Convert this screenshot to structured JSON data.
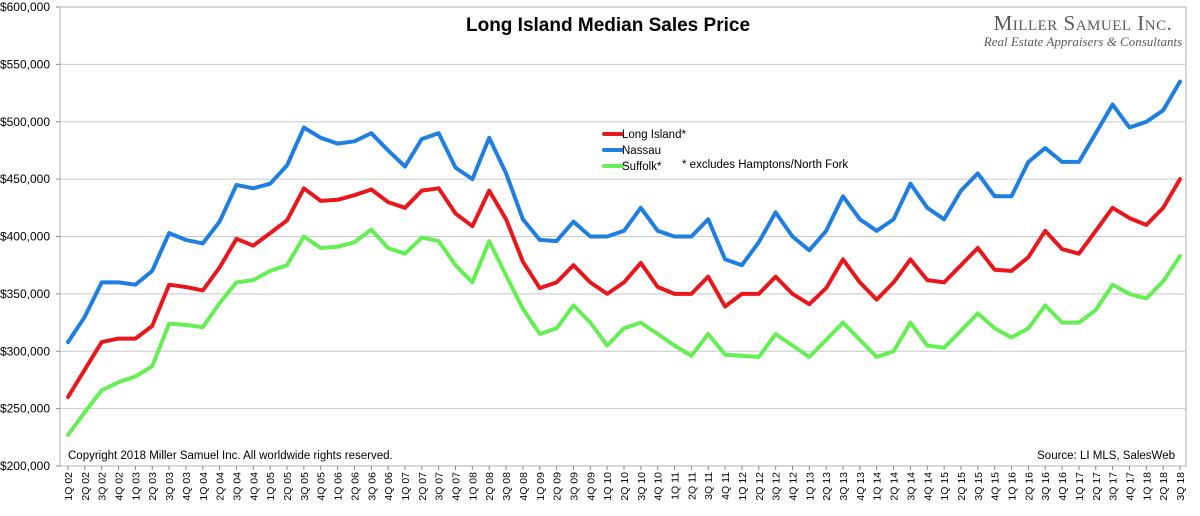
{
  "chart_data": {
    "type": "line",
    "title": "Long Island Median Sales Price",
    "xlabel": "",
    "ylabel": "",
    "ylim": [
      200000,
      600000
    ],
    "yticks": [
      "$200,000",
      "$250,000",
      "$300,000",
      "$350,000",
      "$400,000",
      "$450,000",
      "$500,000",
      "$550,000",
      "$600,000"
    ],
    "categories": [
      "1Q 02",
      "2Q 02",
      "3Q 02",
      "4Q 02",
      "1Q 03",
      "2Q 03",
      "3Q 03",
      "4Q 03",
      "1Q 04",
      "2Q 04",
      "3Q 04",
      "4Q 04",
      "1Q 05",
      "2Q 05",
      "3Q 05",
      "4Q 05",
      "1Q 06",
      "2Q 06",
      "3Q 06",
      "4Q 06",
      "1Q 07",
      "2Q 07",
      "3Q 07",
      "4Q 07",
      "1Q 08",
      "2Q 08",
      "3Q 08",
      "4Q 08",
      "1Q 09",
      "2Q 09",
      "3Q 09",
      "4Q 09",
      "1Q 10",
      "2Q 10",
      "3Q 10",
      "4Q 10",
      "1Q 11",
      "2Q 11",
      "3Q 11",
      "4Q 11",
      "1Q 12",
      "2Q 12",
      "3Q 12",
      "4Q 12",
      "1Q 13",
      "2Q 13",
      "3Q 13",
      "4Q 13",
      "1Q 14",
      "2Q 14",
      "3Q 14",
      "4Q 14",
      "1Q 15",
      "2Q 15",
      "3Q 15",
      "4Q 15",
      "1Q 16",
      "2Q 16",
      "3Q 16",
      "4Q 16",
      "1Q 17",
      "2Q 17",
      "3Q 17",
      "4Q 17",
      "1Q 18",
      "2Q 18",
      "3Q 18"
    ],
    "series": [
      {
        "name": "Long Island*",
        "color": "#e8171c",
        "values": [
          260000,
          284000,
          308000,
          311000,
          311000,
          322000,
          358000,
          356000,
          353000,
          373000,
          398000,
          392000,
          403000,
          414000,
          442000,
          431000,
          432000,
          436000,
          441000,
          430000,
          425000,
          440000,
          442000,
          420000,
          409000,
          440000,
          415000,
          378000,
          355000,
          360000,
          375000,
          360000,
          350000,
          360000,
          377000,
          356000,
          350000,
          350000,
          365000,
          339000,
          350000,
          350000,
          365000,
          350000,
          341000,
          355000,
          380000,
          360000,
          345000,
          360000,
          380000,
          362000,
          360000,
          375000,
          390000,
          371000,
          370000,
          382000,
          405000,
          389000,
          385000,
          405000,
          425000,
          416000,
          410000,
          425000,
          450000
        ]
      },
      {
        "name": "Nassau",
        "color": "#1f7fe0",
        "values": [
          308000,
          330000,
          360000,
          360000,
          358000,
          370000,
          403000,
          397000,
          394000,
          413000,
          445000,
          442000,
          446000,
          462000,
          495000,
          486000,
          481000,
          483000,
          490000,
          475000,
          461000,
          485000,
          490000,
          460000,
          450000,
          486000,
          455000,
          415000,
          397000,
          396000,
          413000,
          400000,
          400000,
          405000,
          425000,
          405000,
          400000,
          400000,
          415000,
          380000,
          375000,
          395000,
          421000,
          400000,
          388000,
          405000,
          435000,
          415000,
          405000,
          415000,
          446000,
          425000,
          415000,
          440000,
          455000,
          435000,
          435000,
          465000,
          477000,
          465000,
          465000,
          490000,
          515000,
          495000,
          500000,
          510000,
          535000
        ]
      },
      {
        "name": "Suffolk*",
        "color": "#66ee55",
        "values": [
          227000,
          247000,
          266000,
          273000,
          278000,
          287000,
          324000,
          323000,
          321000,
          342000,
          360000,
          362000,
          370000,
          375000,
          400000,
          390000,
          391000,
          395000,
          406000,
          390000,
          385000,
          399000,
          396000,
          375000,
          360000,
          396000,
          366000,
          337000,
          315000,
          320000,
          340000,
          325000,
          305000,
          320000,
          325000,
          315000,
          305000,
          296000,
          315000,
          297000,
          296000,
          295000,
          315000,
          305000,
          295000,
          310000,
          325000,
          310000,
          295000,
          300000,
          325000,
          305000,
          303000,
          318000,
          333000,
          320000,
          312000,
          320000,
          340000,
          325000,
          325000,
          336000,
          358000,
          350000,
          346000,
          361000,
          383000
        ]
      }
    ],
    "legend_note": "* excludes Hamptons/North Fork",
    "copyright": "Copyright 2018 Miller Samuel Inc.  All worldwide rights reserved.",
    "source": "Source:  LI MLS, SalesWeb",
    "brand_name": "Miller Samuel Inc.",
    "brand_tagline": "Real Estate Appraisers & Consultants"
  }
}
